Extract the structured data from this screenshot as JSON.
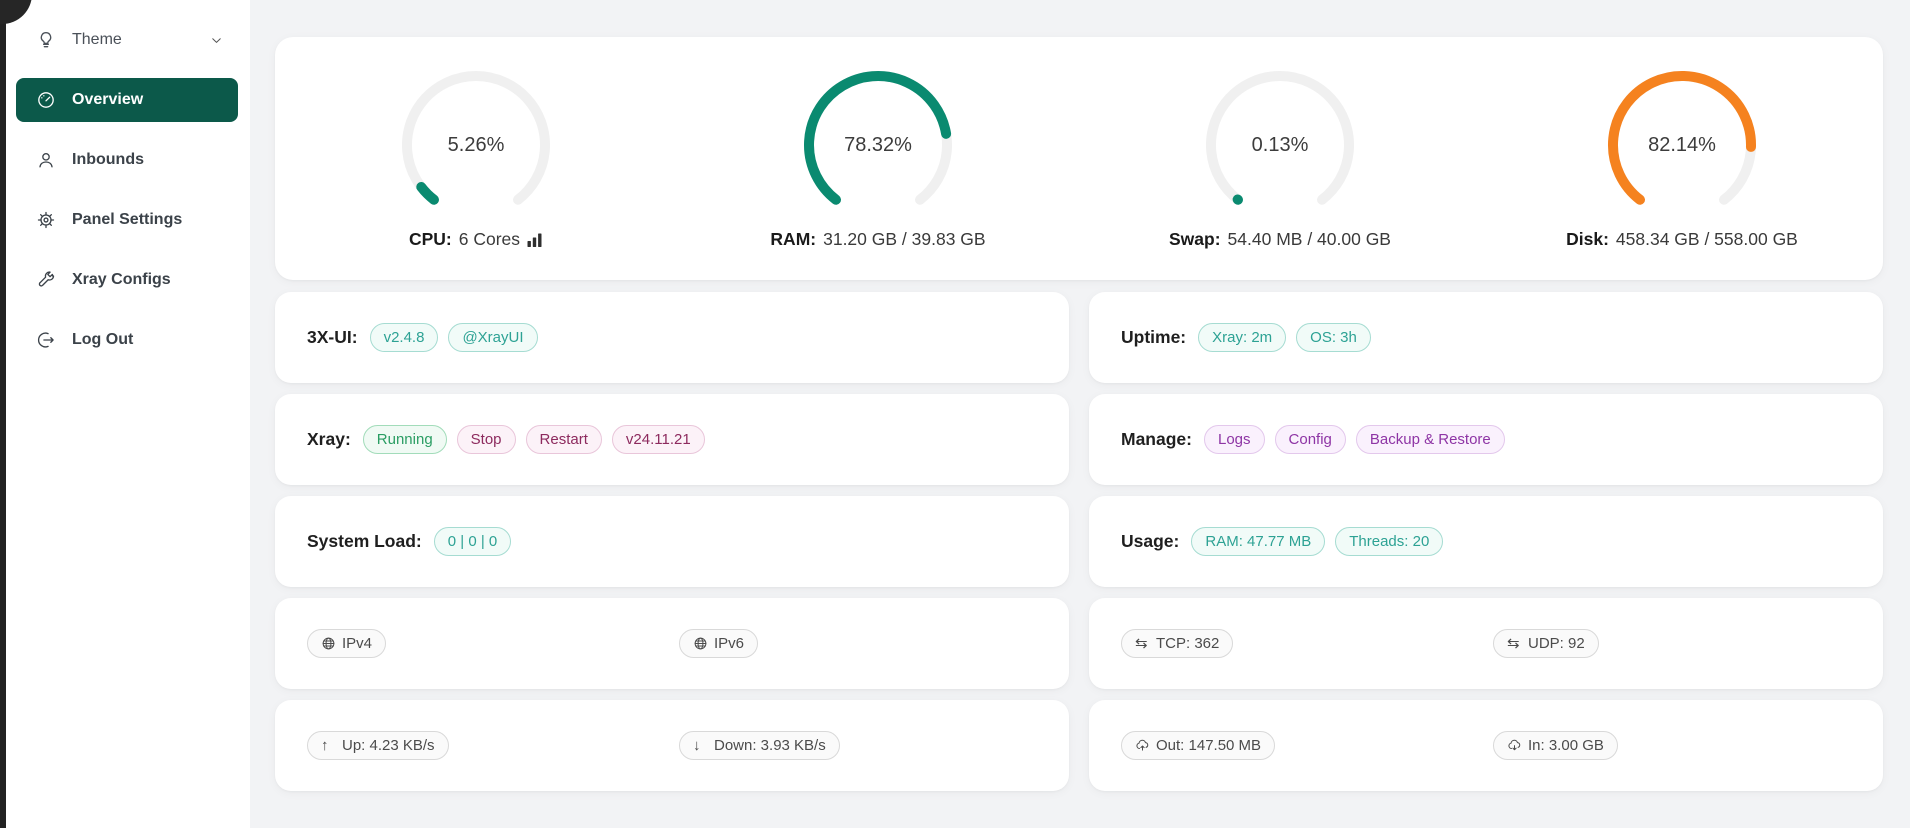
{
  "sidebar": {
    "items": [
      {
        "label": "Theme",
        "icon": "bulb",
        "chevron": true,
        "active": false
      },
      {
        "label": "Overview",
        "icon": "dashboard",
        "chevron": false,
        "active": true
      },
      {
        "label": "Inbounds",
        "icon": "user",
        "chevron": false,
        "active": false
      },
      {
        "label": "Panel Settings",
        "icon": "gear",
        "chevron": false,
        "active": false
      },
      {
        "label": "Xray Configs",
        "icon": "wrench",
        "chevron": false,
        "active": false
      },
      {
        "label": "Log Out",
        "icon": "logout",
        "chevron": false,
        "active": false
      }
    ]
  },
  "colors": {
    "accent_teal": "#0a8a70",
    "accent_orange": "#f5821f",
    "sidebar_active_bg": "#0c594a",
    "gauge_track": "#f0f0f0"
  },
  "gauges": [
    {
      "id": "cpu",
      "percent": 5.26,
      "percent_label": "5.26%",
      "color": "#0a8a70",
      "label_bold": "CPU:",
      "label_rest": " 6 Cores",
      "chart_icon": true
    },
    {
      "id": "ram",
      "percent": 78.32,
      "percent_label": "78.32%",
      "color": "#0a8a70",
      "label_bold": "RAM:",
      "label_rest": " 31.20 GB / 39.83 GB",
      "chart_icon": false
    },
    {
      "id": "swap",
      "percent": 0.13,
      "percent_label": "0.13%",
      "color": "#0a8a70",
      "label_bold": "Swap:",
      "label_rest": " 54.40 MB / 40.00 GB",
      "chart_icon": false
    },
    {
      "id": "disk",
      "percent": 82.14,
      "percent_label": "82.14%",
      "color": "#f5821f",
      "label_bold": "Disk:",
      "label_rest": " 458.34 GB / 558.00 GB",
      "chart_icon": false
    }
  ],
  "cards": {
    "left": [
      {
        "label": "3X-UI:",
        "tags": [
          {
            "text": "v2.4.8",
            "variant": "teal",
            "interactable": true
          },
          {
            "text": "@XrayUI",
            "variant": "teal",
            "interactable": true
          }
        ]
      },
      {
        "label": "Xray:",
        "tags": [
          {
            "text": "Running",
            "variant": "green",
            "interactable": false
          },
          {
            "text": "Stop",
            "variant": "pink",
            "interactable": true
          },
          {
            "text": "Restart",
            "variant": "pink",
            "interactable": true
          },
          {
            "text": "v24.11.21",
            "variant": "pink",
            "interactable": true
          }
        ]
      },
      {
        "label": "System Load:",
        "tags": [
          {
            "text": "0 | 0 | 0",
            "variant": "teal",
            "interactable": false
          }
        ]
      },
      {
        "two_col": true,
        "tags": [
          {
            "text": "IPv4",
            "variant": "gray",
            "icon": "globe",
            "interactable": true
          },
          {
            "text": "IPv6",
            "variant": "gray",
            "icon": "globe",
            "interactable": true
          }
        ]
      },
      {
        "two_col": true,
        "tags": [
          {
            "text": "Up: 4.23 KB/s",
            "variant": "gray",
            "icon": "arrow-up",
            "interactable": false
          },
          {
            "text": "Down: 3.93 KB/s",
            "variant": "gray",
            "icon": "arrow-down",
            "interactable": false
          }
        ]
      }
    ],
    "right": [
      {
        "label": "Uptime:",
        "tags": [
          {
            "text": "Xray: 2m",
            "variant": "teal",
            "interactable": false
          },
          {
            "text": "OS: 3h",
            "variant": "teal",
            "interactable": false
          }
        ]
      },
      {
        "label": "Manage:",
        "tags": [
          {
            "text": "Logs",
            "variant": "purple",
            "interactable": true
          },
          {
            "text": "Config",
            "variant": "purple",
            "interactable": true
          },
          {
            "text": "Backup & Restore",
            "variant": "purple",
            "interactable": true
          }
        ]
      },
      {
        "label": "Usage:",
        "tags": [
          {
            "text": "RAM: 47.77 MB",
            "variant": "teal",
            "interactable": false
          },
          {
            "text": "Threads: 20",
            "variant": "teal",
            "interactable": false
          }
        ]
      },
      {
        "two_col": true,
        "tags": [
          {
            "text": "TCP: 362",
            "variant": "gray",
            "icon": "swap",
            "interactable": false
          },
          {
            "text": "UDP: 92",
            "variant": "gray",
            "icon": "swap",
            "interactable": false
          }
        ]
      },
      {
        "two_col": true,
        "tags": [
          {
            "text": "Out: 147.50 MB",
            "variant": "gray",
            "icon": "cloud-up",
            "interactable": false
          },
          {
            "text": "In: 3.00 GB",
            "variant": "gray",
            "icon": "cloud-down",
            "interactable": false
          }
        ]
      }
    ]
  }
}
